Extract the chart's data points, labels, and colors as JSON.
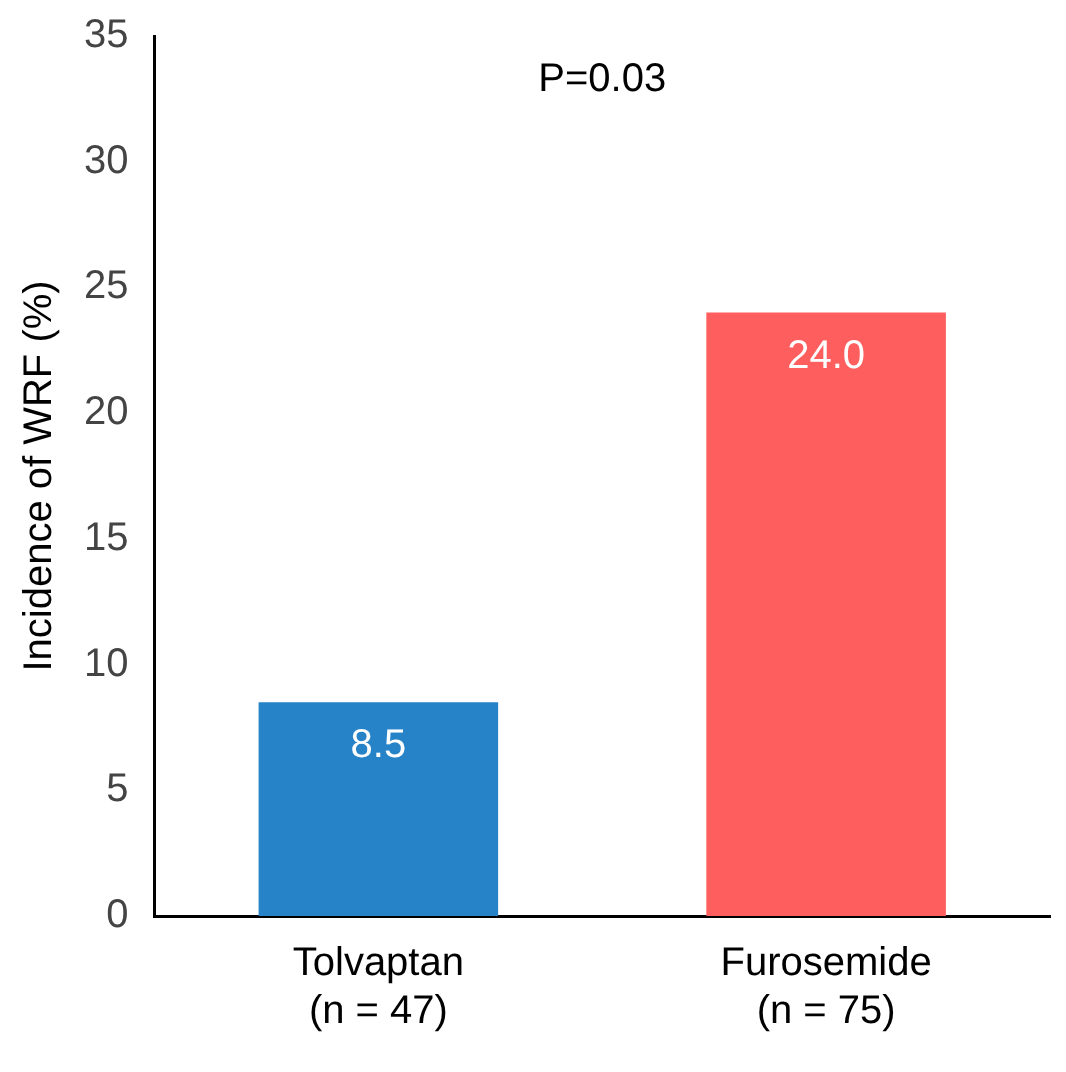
{
  "chart_data": {
    "type": "bar",
    "ylabel": "Incidence of WRF (%)",
    "categories": [
      "Tolvaptan\n(n = 47)",
      "Furosemide\n(n = 75)"
    ],
    "values": [
      8.5,
      24.0
    ],
    "colors": [
      "#2783c7",
      "#fe5e5e"
    ],
    "value_labels": [
      "8.5",
      "24.0"
    ],
    "ylim": [
      0,
      35
    ],
    "yticks": [
      0,
      5,
      10,
      15,
      20,
      25,
      30,
      35
    ],
    "grid": false,
    "legend": false,
    "annotations": [
      "P=0.03"
    ]
  }
}
